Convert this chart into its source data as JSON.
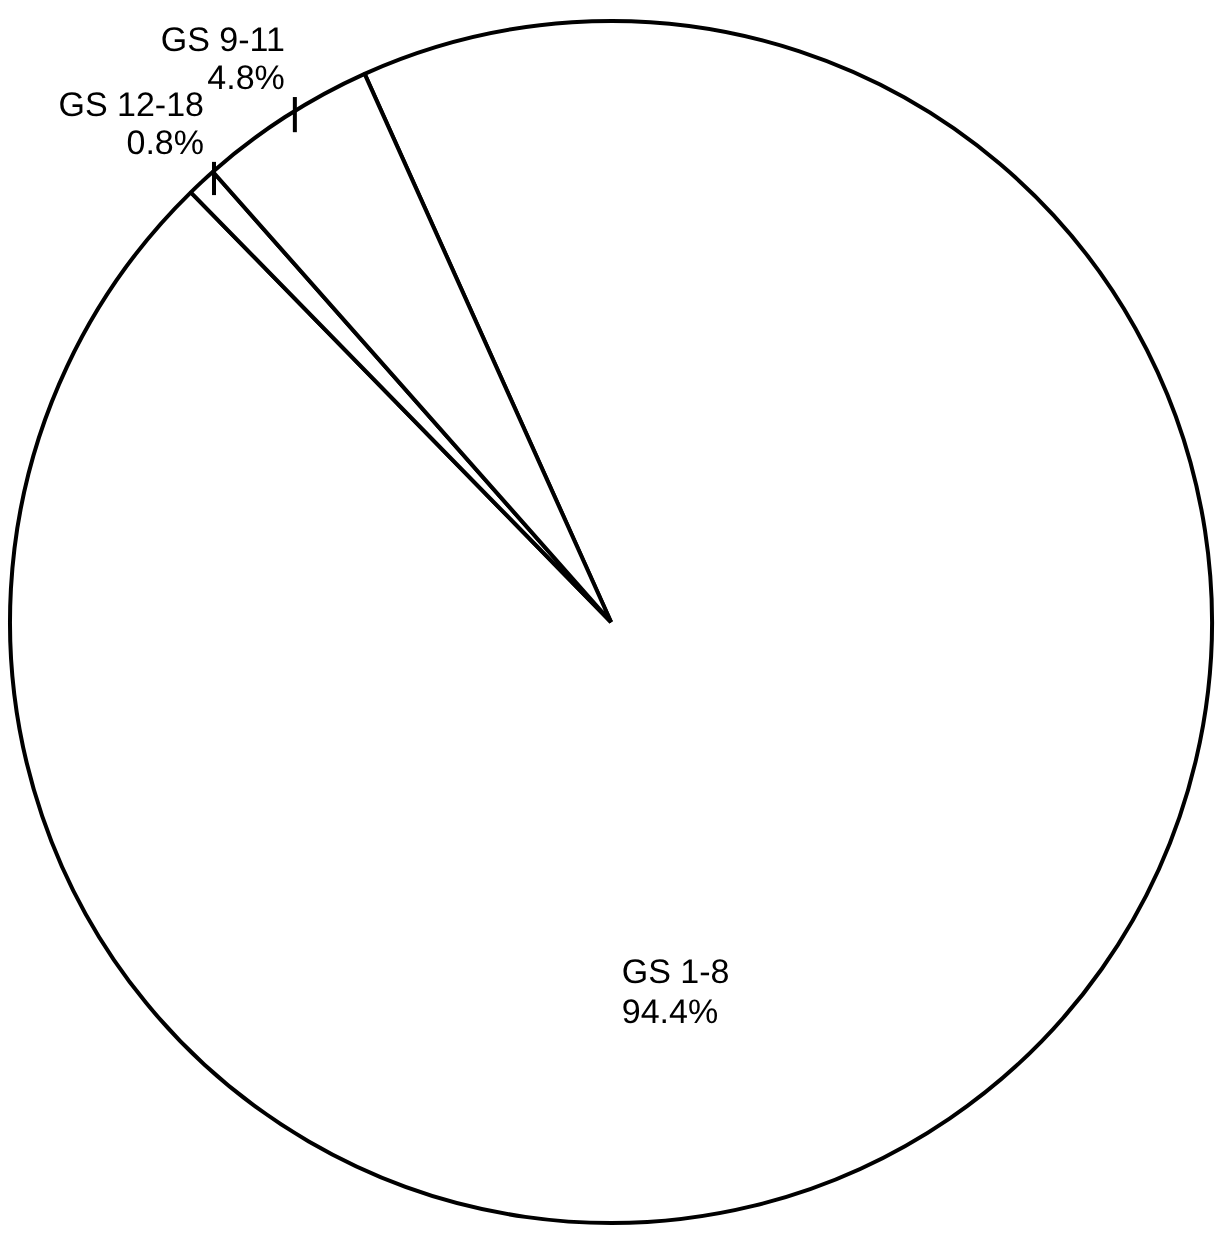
{
  "chart_data": {
    "type": "pie",
    "categories": [
      "GS 1-8",
      "GS 12-18",
      "GS 9-11"
    ],
    "values": [
      94.4,
      0.8,
      4.8
    ],
    "value_labels": [
      "94.4%",
      "0.8%",
      "4.8%"
    ],
    "colors": [
      "#ffffff",
      "#ffffff",
      "#ffffff"
    ],
    "legend": false
  }
}
